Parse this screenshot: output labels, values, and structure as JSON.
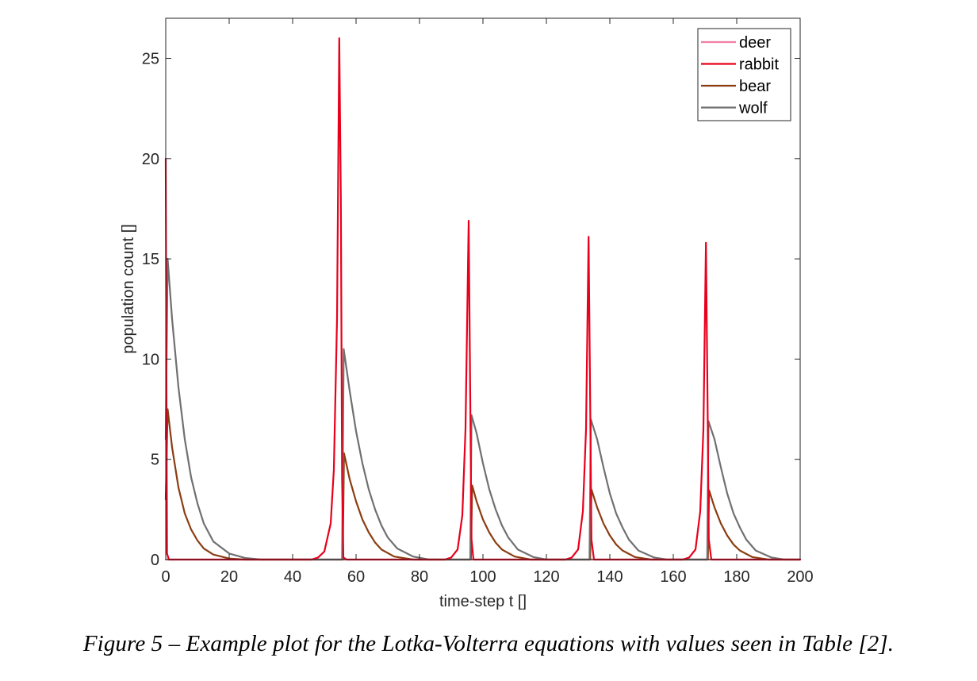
{
  "chart_data": {
    "type": "line",
    "xlabel": "time-step t []",
    "ylabel": "population count []",
    "xlim": [
      0,
      200
    ],
    "ylim": [
      0,
      27
    ],
    "xticks": [
      0,
      20,
      40,
      60,
      80,
      100,
      120,
      140,
      160,
      180,
      200
    ],
    "yticks": [
      0,
      5,
      10,
      15,
      20,
      25
    ],
    "grid": false,
    "legend_position": "top-right",
    "series": [
      {
        "name": "deer",
        "color": "#f07fa6",
        "points": [
          [
            0,
            0
          ],
          [
            200,
            0
          ]
        ]
      },
      {
        "name": "rabbit",
        "color": "#e8001c",
        "points": [
          [
            0,
            20
          ],
          [
            0.4,
            0.3
          ],
          [
            1,
            0
          ],
          [
            46,
            0
          ],
          [
            48,
            0.1
          ],
          [
            50,
            0.4
          ],
          [
            52,
            1.8
          ],
          [
            53,
            4.5
          ],
          [
            54,
            12
          ],
          [
            54.7,
            26
          ],
          [
            55.2,
            18
          ],
          [
            55.6,
            4
          ],
          [
            56,
            0.1
          ],
          [
            57,
            0
          ],
          [
            88,
            0
          ],
          [
            90,
            0.1
          ],
          [
            92,
            0.5
          ],
          [
            93.5,
            2.2
          ],
          [
            94.5,
            6.5
          ],
          [
            95.5,
            16.9
          ],
          [
            96,
            8
          ],
          [
            96.4,
            1
          ],
          [
            97,
            0
          ],
          [
            126,
            0
          ],
          [
            128,
            0.1
          ],
          [
            130,
            0.5
          ],
          [
            131.5,
            2.4
          ],
          [
            132.5,
            6.5
          ],
          [
            133.3,
            16.1
          ],
          [
            133.8,
            8
          ],
          [
            134.2,
            1
          ],
          [
            135,
            0
          ],
          [
            163,
            0
          ],
          [
            165,
            0.1
          ],
          [
            167,
            0.5
          ],
          [
            168.5,
            2.4
          ],
          [
            169.5,
            6.5
          ],
          [
            170.3,
            15.8
          ],
          [
            170.8,
            8
          ],
          [
            171.2,
            1
          ],
          [
            172,
            0
          ],
          [
            200,
            0
          ]
        ]
      },
      {
        "name": "bear",
        "color": "#8b3d12",
        "points": [
          [
            0,
            3
          ],
          [
            0.6,
            7.5
          ],
          [
            2,
            5.6
          ],
          [
            4,
            3.6
          ],
          [
            6,
            2.3
          ],
          [
            8,
            1.5
          ],
          [
            10,
            0.95
          ],
          [
            12,
            0.55
          ],
          [
            15,
            0.25
          ],
          [
            20,
            0.05
          ],
          [
            25,
            0
          ],
          [
            55.8,
            0
          ],
          [
            56.2,
            5.3
          ],
          [
            58,
            4.0
          ],
          [
            60,
            2.9
          ],
          [
            62,
            2.0
          ],
          [
            64,
            1.35
          ],
          [
            66,
            0.85
          ],
          [
            68,
            0.5
          ],
          [
            72,
            0.15
          ],
          [
            78,
            0
          ],
          [
            96.2,
            0
          ],
          [
            96.6,
            3.7
          ],
          [
            98,
            2.9
          ],
          [
            100,
            2.0
          ],
          [
            102,
            1.35
          ],
          [
            104,
            0.85
          ],
          [
            106,
            0.5
          ],
          [
            110,
            0.15
          ],
          [
            115,
            0
          ],
          [
            133.8,
            0
          ],
          [
            134.2,
            3.5
          ],
          [
            136,
            2.6
          ],
          [
            138,
            1.8
          ],
          [
            140,
            1.2
          ],
          [
            142,
            0.75
          ],
          [
            144,
            0.45
          ],
          [
            148,
            0.12
          ],
          [
            153,
            0
          ],
          [
            170.9,
            0
          ],
          [
            171.3,
            3.45
          ],
          [
            173,
            2.6
          ],
          [
            175,
            1.8
          ],
          [
            177,
            1.2
          ],
          [
            179,
            0.75
          ],
          [
            181,
            0.45
          ],
          [
            185,
            0.12
          ],
          [
            190,
            0
          ],
          [
            200,
            0
          ]
        ]
      },
      {
        "name": "wolf",
        "color": "#707070",
        "points": [
          [
            0,
            6
          ],
          [
            0.6,
            15
          ],
          [
            2,
            12
          ],
          [
            4,
            8.6
          ],
          [
            6,
            6.0
          ],
          [
            8,
            4.1
          ],
          [
            10,
            2.8
          ],
          [
            12,
            1.8
          ],
          [
            15,
            0.9
          ],
          [
            20,
            0.3
          ],
          [
            25,
            0.08
          ],
          [
            30,
            0
          ],
          [
            55.6,
            0
          ],
          [
            56.1,
            10.5
          ],
          [
            58,
            8.4
          ],
          [
            60,
            6.4
          ],
          [
            62,
            4.8
          ],
          [
            64,
            3.5
          ],
          [
            66,
            2.5
          ],
          [
            68,
            1.7
          ],
          [
            70,
            1.1
          ],
          [
            73,
            0.55
          ],
          [
            78,
            0.15
          ],
          [
            83,
            0
          ],
          [
            96,
            0
          ],
          [
            96.4,
            7.2
          ],
          [
            98,
            6.3
          ],
          [
            100,
            4.8
          ],
          [
            102,
            3.5
          ],
          [
            104,
            2.5
          ],
          [
            106,
            1.7
          ],
          [
            108,
            1.1
          ],
          [
            111,
            0.5
          ],
          [
            116,
            0.12
          ],
          [
            120,
            0
          ],
          [
            133.6,
            0
          ],
          [
            134,
            7.0
          ],
          [
            136,
            6.0
          ],
          [
            138,
            4.6
          ],
          [
            140,
            3.3
          ],
          [
            142,
            2.3
          ],
          [
            144,
            1.6
          ],
          [
            146,
            1.0
          ],
          [
            149,
            0.45
          ],
          [
            154,
            0.1
          ],
          [
            158,
            0
          ],
          [
            170.7,
            0
          ],
          [
            171.1,
            6.9
          ],
          [
            173,
            6.0
          ],
          [
            175,
            4.6
          ],
          [
            177,
            3.3
          ],
          [
            179,
            2.3
          ],
          [
            181,
            1.6
          ],
          [
            183,
            1.0
          ],
          [
            186,
            0.45
          ],
          [
            191,
            0.1
          ],
          [
            195,
            0
          ],
          [
            200,
            0
          ]
        ]
      }
    ]
  },
  "caption": "Figure 5 – Example plot for the Lotka-Volterra equations with values seen in Table [2]."
}
